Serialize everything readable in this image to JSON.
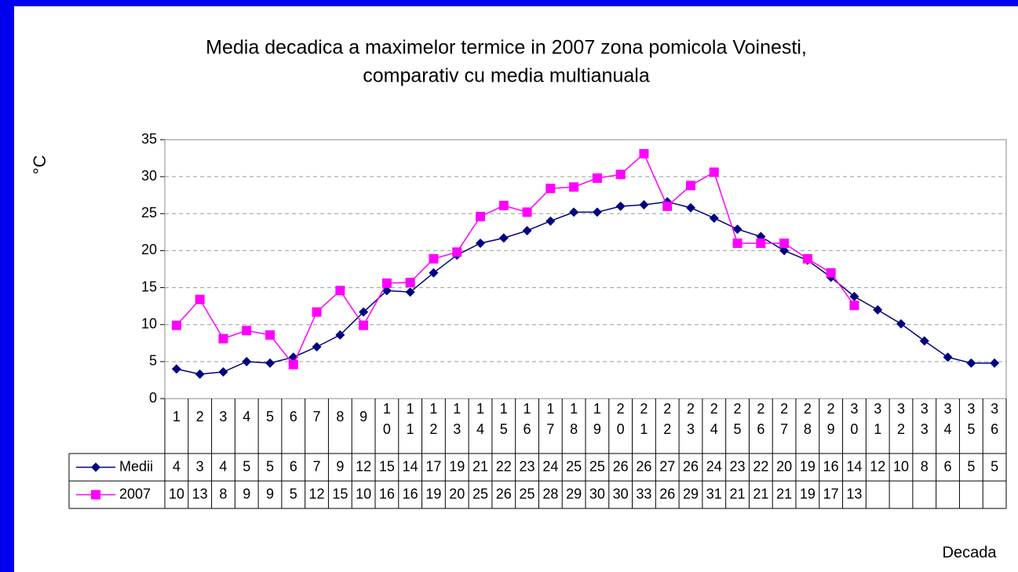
{
  "chart_data": {
    "type": "line",
    "title": [
      "Media decadica a maximelor termice in 2007 zona pomicola Voinesti,",
      "comparativ cu media multianuala"
    ],
    "y_label": "°C",
    "x_label": "Decada",
    "categories": [
      "1",
      "2",
      "3",
      "4",
      "5",
      "6",
      "7",
      "8",
      "9",
      "10",
      "11",
      "12",
      "13",
      "14",
      "15",
      "16",
      "17",
      "18",
      "19",
      "20",
      "21",
      "22",
      "23",
      "24",
      "25",
      "26",
      "27",
      "28",
      "29",
      "30",
      "31",
      "32",
      "33",
      "34",
      "35",
      "36"
    ],
    "series": [
      {
        "name": "Medii",
        "color": "#000080",
        "marker": "diamond",
        "values": [
          4.0,
          3.3,
          3.6,
          5.0,
          4.8,
          5.6,
          7.0,
          8.6,
          11.7,
          14.6,
          14.4,
          17.0,
          19.4,
          21.0,
          21.7,
          22.7,
          24.0,
          25.2,
          25.2,
          26.0,
          26.2,
          26.6,
          25.8,
          24.4,
          22.9,
          21.9,
          20.0,
          18.7,
          16.4,
          13.8,
          12.0,
          10.1,
          7.8,
          5.6,
          4.8,
          4.8
        ],
        "value_labels": [
          "4",
          "3",
          "4",
          "5",
          "5",
          "6",
          "7",
          "9",
          "12",
          "15",
          "14",
          "17",
          "19",
          "21",
          "22",
          "23",
          "24",
          "25",
          "25",
          "26",
          "26",
          "27",
          "26",
          "24",
          "23",
          "22",
          "20",
          "19",
          "16",
          "14",
          "12",
          "10",
          "8",
          "6",
          "5",
          "5"
        ]
      },
      {
        "name": "2007",
        "color": "#ff00ff",
        "marker": "square",
        "values": [
          9.9,
          13.4,
          8.1,
          9.2,
          8.6,
          4.6,
          11.7,
          14.6,
          9.9,
          15.6,
          15.7,
          18.9,
          19.8,
          24.6,
          26.1,
          25.2,
          28.4,
          28.6,
          29.8,
          30.3,
          33.1,
          26.0,
          28.8,
          30.6,
          21.0,
          21.0,
          21.0,
          18.9,
          17.0,
          12.6,
          null,
          null,
          null,
          null,
          null,
          null
        ],
        "value_labels": [
          "10",
          "13",
          "8",
          "9",
          "9",
          "5",
          "12",
          "15",
          "10",
          "16",
          "16",
          "19",
          "20",
          "25",
          "26",
          "25",
          "28",
          "29",
          "30",
          "30",
          "33",
          "26",
          "29",
          "31",
          "21",
          "21",
          "21",
          "19",
          "17",
          "13",
          null,
          null,
          null,
          null,
          null,
          null
        ]
      }
    ],
    "ylim": [
      0,
      35
    ],
    "yticks": [
      0,
      5,
      10,
      15,
      20,
      25,
      30,
      35
    ],
    "grid": true
  }
}
